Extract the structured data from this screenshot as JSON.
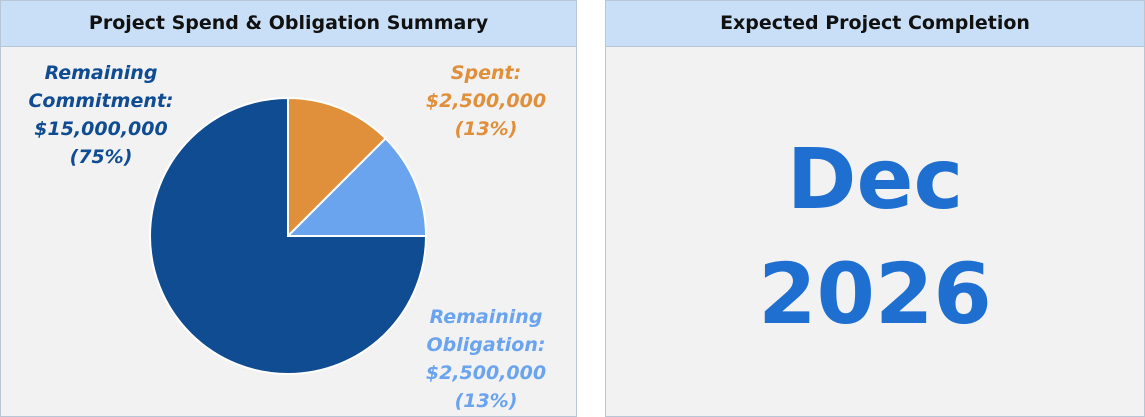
{
  "chart_data": {
    "type": "pie",
    "title": "Project Spend & Obligation Summary",
    "categories": [
      "Spent:",
      "Remaining Obligation:",
      "Remaining Commitment:"
    ],
    "values": [
      2500000,
      2500000,
      15000000
    ],
    "value_labels": [
      "$2,500,000",
      "$2,500,000",
      "$15,000,000"
    ],
    "percent_labels": [
      "(13%)",
      "(13%)",
      "(75%)"
    ],
    "colors": [
      "#e08f3a",
      "#6aa3ee",
      "#0f4c92"
    ]
  },
  "completion": {
    "title": "Expected Project Completion",
    "month": "Dec",
    "year": "2026"
  }
}
